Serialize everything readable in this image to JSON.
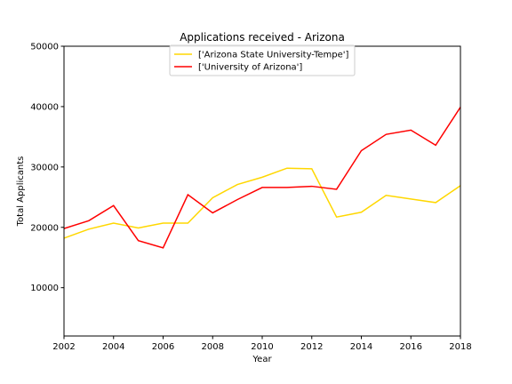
{
  "chart_data": {
    "type": "line",
    "title": "Applications received - Arizona",
    "xlabel": "Year",
    "ylabel": "Total Applicants",
    "xlim": [
      2002,
      2018
    ],
    "ylim": [
      2000,
      50000
    ],
    "xticks": [
      2002,
      2004,
      2006,
      2008,
      2010,
      2012,
      2014,
      2016,
      2018
    ],
    "yticks": [
      10000,
      20000,
      30000,
      40000,
      50000
    ],
    "grid": false,
    "legend_position": "top-center",
    "x": [
      2002,
      2003,
      2004,
      2005,
      2006,
      2007,
      2008,
      2009,
      2010,
      2011,
      2012,
      2013,
      2014,
      2015,
      2016,
      2017,
      2018
    ],
    "series": [
      {
        "name": "['Arizona State University-Tempe']",
        "color": "#ffd700",
        "values": [
          18200,
          19700,
          20700,
          19900,
          20700,
          20700,
          24900,
          27100,
          28300,
          29800,
          29700,
          21700,
          22500,
          25300,
          24700,
          24100,
          26900
        ]
      },
      {
        "name": "['University of Arizona']",
        "color": "#ff0000",
        "values": [
          19800,
          21100,
          23600,
          17800,
          16600,
          25400,
          22400,
          24600,
          26600,
          26600,
          26800,
          26300,
          32700,
          35400,
          36100,
          33600,
          39900
        ]
      }
    ]
  }
}
